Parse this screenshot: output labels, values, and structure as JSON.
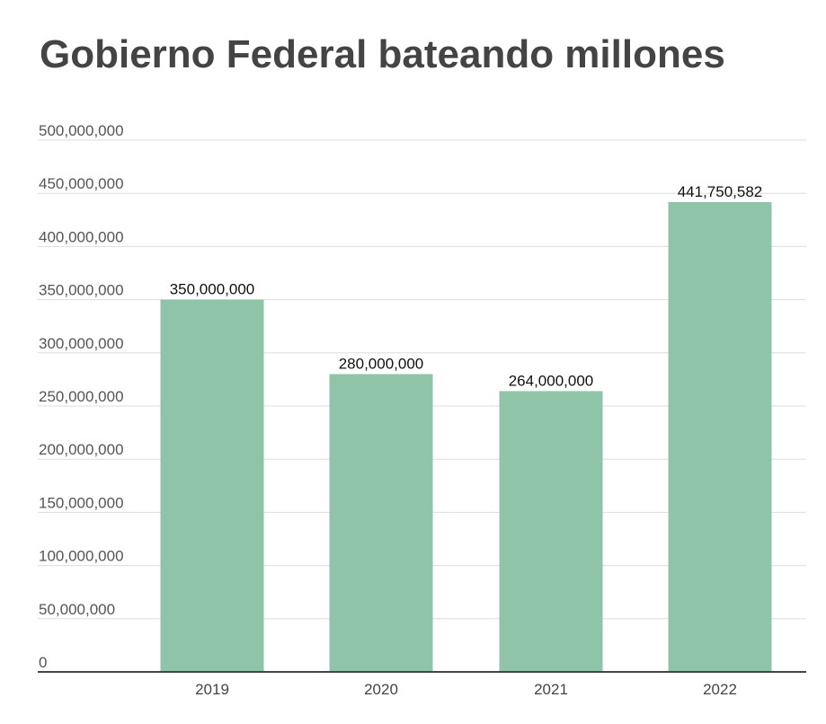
{
  "chart_data": {
    "type": "bar",
    "title": "Gobierno Federal bateando millones",
    "categories": [
      "2019",
      "2020",
      "2021",
      "2022"
    ],
    "values": [
      350000000,
      280000000,
      264000000,
      441750582
    ],
    "data_labels": [
      "350,000,000",
      "280,000,000",
      "264,000,000",
      "441,750,582"
    ],
    "y_ticks": [
      "0",
      "50,000,000",
      "100,000,000",
      "150,000,000",
      "200,000,000",
      "250,000,000",
      "300,000,000",
      "350,000,000",
      "400,000,000",
      "450,000,000",
      "500,000,000"
    ],
    "ylim": [
      0,
      500000000
    ],
    "xlabel": "",
    "ylabel": "",
    "grid": true,
    "bar_color": "#8fc4a8",
    "grid_color": "#dddddd",
    "axis_color": "#444444"
  }
}
